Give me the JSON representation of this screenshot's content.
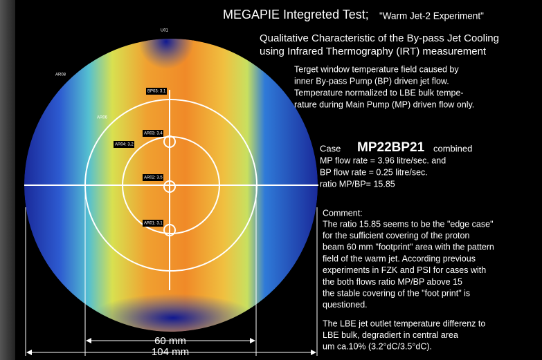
{
  "title": {
    "main": "MEGAPIE Integreted Test;",
    "quote": "\"Warm Jet-2 Experiment\""
  },
  "subtitle": [
    "Qualitative Characteristic of the By-pass Jet Cooling",
    "using Infrared Thermography (IRT) measurement"
  ],
  "description": [
    "Terget window temperature field caused by",
    "inner By-pass Pump (BP) driven jet flow.",
    "Temperature normalized to LBE bulk tempe-",
    "rature during Main Pump (MP) driven flow only."
  ],
  "case": {
    "label": "Case",
    "id": "MP22BP21",
    "suffix": "combined",
    "lines": [
      "MP flow rate = 3.96 litre/sec. and",
      "BP flow rate  = 0.25 litre/sec.",
      "ratio   MP/BP= 15.85"
    ]
  },
  "comment": {
    "label": "Comment:",
    "lines": [
      "The ratio 15.85 seems to be the \"edge case\"",
      "for the sufficient covering of the proton",
      "beam 60 mm \"footprint\" area with the pattern",
      "field of the warm jet.  According previous",
      "experiments in FZK and PSI for cases with",
      "the both flows ratio MP/BP above 15",
      "the stable covering of the \"foot print\"  is",
      "questioned."
    ]
  },
  "conclusion": [
    "The LBE jet outlet temperature differenz to",
    "LBE bulk, degradiert in central area",
    "um ca.10% (3.2°dC/3.5°dC)."
  ],
  "image": {
    "probes": [
      "U01",
      "AR08",
      "AR06",
      "BP03: 3.1",
      "AR03: 3.4",
      "AR04: 3.2",
      "AR02: 3.5",
      "AR01: 3.1"
    ],
    "dimensions": {
      "inner": "60 mm",
      "outer": "104 mm"
    }
  }
}
